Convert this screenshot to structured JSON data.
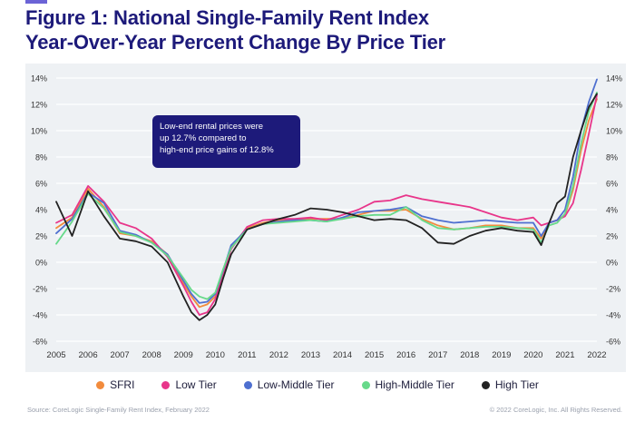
{
  "header": {
    "title_line1": "Figure 1: National Single-Family Rent Index",
    "title_line2": "Year-Over-Year Percent Change By Price Tier"
  },
  "annotation": {
    "line1": "Low-end rental prices were",
    "line2": "up 12.7% compared to",
    "line3": "high-end price gains of 12.8%"
  },
  "legend": [
    {
      "label": "SFRI",
      "color": "#f28b3c"
    },
    {
      "label": "Low Tier",
      "color": "#e8358a"
    },
    {
      "label": "Low-Middle Tier",
      "color": "#4e6fd0"
    },
    {
      "label": "High-Middle Tier",
      "color": "#67d98a"
    },
    {
      "label": "High Tier",
      "color": "#222222"
    }
  ],
  "footer": {
    "source": "Source: CoreLogic Single-Family Rent Index, February 2022",
    "copyright": "© 2022 CoreLogic, Inc. All Rights Reserved."
  },
  "chart_data": {
    "type": "line",
    "title": "Figure 1: National Single-Family Rent Index Year-Over-Year Percent Change By Price Tier",
    "xlabel": "",
    "ylabel": "",
    "xlim": [
      2005,
      2022
    ],
    "ylim": [
      -6,
      14
    ],
    "x_ticks": [
      "2005",
      "2006",
      "2007",
      "2008",
      "2009",
      "2010",
      "2011",
      "2012",
      "2013",
      "2014",
      "2015",
      "2016",
      "2017",
      "2018",
      "2019",
      "2020",
      "2021",
      "2022"
    ],
    "y_ticks_left": [
      "-6%",
      "-4%",
      "-2%",
      "0%",
      "2%",
      "4%",
      "6%",
      "8%",
      "10%",
      "12%",
      "14%"
    ],
    "y_ticks_right": [
      "-6%",
      "-4%",
      "-2%",
      "0%",
      "2%",
      "4%",
      "6%",
      "8%",
      "10%",
      "12%",
      "14%"
    ],
    "y_tick_values": [
      -6,
      -4,
      -2,
      0,
      2,
      4,
      6,
      8,
      10,
      12,
      14
    ],
    "grid": "horizontal",
    "x": [
      2005,
      2005.5,
      2006,
      2006.5,
      2007,
      2007.5,
      2008,
      2008.5,
      2009,
      2009.25,
      2009.5,
      2009.75,
      2010,
      2010.25,
      2010.5,
      2011,
      2011.5,
      2012,
      2012.5,
      2013,
      2013.5,
      2014,
      2014.5,
      2015,
      2015.5,
      2016,
      2016.5,
      2017,
      2017.5,
      2018,
      2018.5,
      2019,
      2019.5,
      2020,
      2020.25,
      2020.5,
      2020.75,
      2021,
      2021.25,
      2021.5,
      2021.75,
      2022
    ],
    "series": [
      {
        "name": "SFRI",
        "color": "#f28b3c",
        "values": [
          2.6,
          3.4,
          5.6,
          4.2,
          2.2,
          2.0,
          1.6,
          0.6,
          -1.6,
          -2.6,
          -3.4,
          -3.2,
          -2.6,
          -0.8,
          1.2,
          2.6,
          3.0,
          3.2,
          3.2,
          3.3,
          3.3,
          3.3,
          3.6,
          3.9,
          3.9,
          4.0,
          3.3,
          2.8,
          2.5,
          2.6,
          2.8,
          2.8,
          2.6,
          2.6,
          1.8,
          3.0,
          3.2,
          3.6,
          5.5,
          8.5,
          10.8,
          12.4
        ]
      },
      {
        "name": "Low Tier",
        "color": "#e8358a",
        "values": [
          3.0,
          3.6,
          5.8,
          4.6,
          3.0,
          2.6,
          1.8,
          0.4,
          -1.8,
          -3.0,
          -4.0,
          -3.8,
          -2.8,
          -1.0,
          1.0,
          2.7,
          3.2,
          3.3,
          3.3,
          3.4,
          3.2,
          3.6,
          4.0,
          4.6,
          4.7,
          5.1,
          4.8,
          4.6,
          4.4,
          4.2,
          3.8,
          3.4,
          3.2,
          3.4,
          2.8,
          3.0,
          3.2,
          3.5,
          4.5,
          7.0,
          9.8,
          12.7
        ]
      },
      {
        "name": "Low-Middle Tier",
        "color": "#4e6fd0",
        "values": [
          2.2,
          3.3,
          5.3,
          4.5,
          2.4,
          2.1,
          1.5,
          0.6,
          -1.4,
          -2.4,
          -3.1,
          -3.0,
          -2.4,
          -0.6,
          1.3,
          2.5,
          2.9,
          3.1,
          3.2,
          3.2,
          3.1,
          3.4,
          3.8,
          3.9,
          4.0,
          4.2,
          3.5,
          3.2,
          3.0,
          3.1,
          3.2,
          3.1,
          3.0,
          3.0,
          2.0,
          3.0,
          3.2,
          4.0,
          6.5,
          10.0,
          12.2,
          13.9
        ]
      },
      {
        "name": "High-Middle Tier",
        "color": "#67d98a",
        "values": [
          1.4,
          3.1,
          5.2,
          4.1,
          2.3,
          2.0,
          1.5,
          0.5,
          -1.2,
          -2.1,
          -2.6,
          -2.8,
          -2.3,
          -0.5,
          1.1,
          2.5,
          2.9,
          3.0,
          3.1,
          3.2,
          3.1,
          3.3,
          3.5,
          3.6,
          3.6,
          4.2,
          3.2,
          2.6,
          2.5,
          2.6,
          2.7,
          2.7,
          2.6,
          2.5,
          1.5,
          2.8,
          3.0,
          3.7,
          5.8,
          9.0,
          11.5,
          12.9
        ]
      },
      {
        "name": "High Tier",
        "color": "#222222",
        "values": [
          4.6,
          2.0,
          5.4,
          3.5,
          1.8,
          1.6,
          1.2,
          0.0,
          -2.6,
          -3.8,
          -4.4,
          -4.0,
          -3.2,
          -1.2,
          0.6,
          2.5,
          2.9,
          3.3,
          3.6,
          4.1,
          4.0,
          3.8,
          3.5,
          3.2,
          3.3,
          3.2,
          2.6,
          1.5,
          1.4,
          2.0,
          2.4,
          2.6,
          2.4,
          2.3,
          1.3,
          3.0,
          4.5,
          5.0,
          8.0,
          10.0,
          11.8,
          12.8
        ]
      }
    ]
  }
}
